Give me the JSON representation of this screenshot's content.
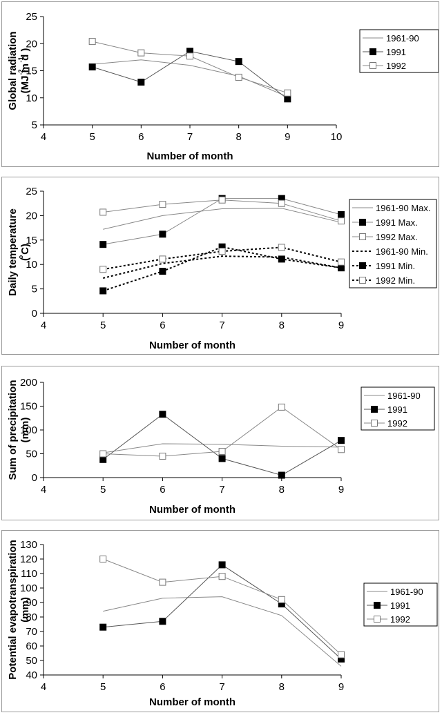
{
  "chart_data": [
    {
      "type": "line",
      "ylabel_lines": [
        "Global radiation",
        "(MJ m  d  )"
      ],
      "ylabel_superscripts": [
        "-2",
        "-1"
      ],
      "xlabel": "Number of month",
      "xlim": [
        4,
        10
      ],
      "ylim": [
        5,
        25
      ],
      "xticks": [
        4,
        5,
        6,
        7,
        8,
        9,
        10
      ],
      "yticks": [
        5,
        10,
        15,
        20,
        25
      ],
      "legend": "right",
      "series": [
        {
          "name": "1961-90",
          "x": [
            5,
            6,
            7,
            8,
            9
          ],
          "values": [
            16.2,
            17.0,
            16.0,
            14.0,
            10.2
          ],
          "marker": "none",
          "dash": "solid",
          "color": "#888888"
        },
        {
          "name": "1991",
          "x": [
            5,
            6,
            7,
            8,
            9
          ],
          "values": [
            15.7,
            12.9,
            18.6,
            16.7,
            9.8
          ],
          "marker": "filled-square",
          "dash": "solid",
          "color": "#555555"
        },
        {
          "name": "1992",
          "x": [
            5,
            6,
            7,
            8,
            9
          ],
          "values": [
            20.4,
            18.3,
            17.7,
            13.8,
            10.9
          ],
          "marker": "open-square",
          "dash": "solid",
          "color": "#888888"
        }
      ]
    },
    {
      "type": "line",
      "ylabel_lines": [
        "Daily temperature",
        "( C)"
      ],
      "ylabel_superscripts": [
        "o"
      ],
      "xlabel": "Number of month",
      "xlim": [
        4,
        9
      ],
      "ylim": [
        0,
        25
      ],
      "xticks": [
        4,
        5,
        6,
        7,
        8,
        9
      ],
      "yticks": [
        0,
        5,
        10,
        15,
        20,
        25
      ],
      "legend": "right",
      "series": [
        {
          "name": "1961-90 Max.",
          "x": [
            5,
            6,
            7,
            8,
            9
          ],
          "values": [
            17.2,
            20.0,
            21.4,
            21.5,
            18.6
          ],
          "marker": "none",
          "dash": "solid",
          "color": "#888888"
        },
        {
          "name": "1991 Max.",
          "x": [
            5,
            6,
            7,
            8,
            9
          ],
          "values": [
            14.1,
            16.2,
            23.5,
            23.5,
            20.2
          ],
          "marker": "filled-square",
          "dash": "solid",
          "color": "#888888"
        },
        {
          "name": "1992 Max.",
          "x": [
            5,
            6,
            7,
            8,
            9
          ],
          "values": [
            20.7,
            22.3,
            23.2,
            22.5,
            18.9
          ],
          "marker": "open-square",
          "dash": "solid",
          "color": "#888888"
        },
        {
          "name": "1961-90 Min.",
          "x": [
            5,
            6,
            7,
            8,
            9
          ],
          "values": [
            7.2,
            10.2,
            11.7,
            11.5,
            9.3
          ],
          "marker": "none",
          "dash": "dotted",
          "color": "#000000"
        },
        {
          "name": "1991 Min.",
          "x": [
            5,
            6,
            7,
            8,
            9
          ],
          "values": [
            4.6,
            8.6,
            13.6,
            11.1,
            9.3
          ],
          "marker": "filled-square",
          "dash": "dotted",
          "color": "#000000"
        },
        {
          "name": "1992 Min.",
          "x": [
            5,
            6,
            7,
            8,
            9
          ],
          "values": [
            9.0,
            11.1,
            12.7,
            13.5,
            10.5
          ],
          "marker": "open-square",
          "dash": "dotted",
          "color": "#000000"
        }
      ]
    },
    {
      "type": "line",
      "ylabel_lines": [
        "Sum of precipitation",
        "(mm)"
      ],
      "ylabel_superscripts": [],
      "xlabel": "Number of month",
      "xlim": [
        4,
        9
      ],
      "ylim": [
        0,
        200
      ],
      "xticks": [
        4,
        5,
        6,
        7,
        8,
        9
      ],
      "yticks": [
        0,
        50,
        100,
        150,
        200
      ],
      "legend": "right",
      "series": [
        {
          "name": "1961-90",
          "x": [
            5,
            6,
            7,
            8,
            9
          ],
          "values": [
            52,
            71,
            70,
            66,
            64
          ],
          "marker": "none",
          "dash": "solid",
          "color": "#888888"
        },
        {
          "name": "1991",
          "x": [
            5,
            6,
            7,
            8,
            9
          ],
          "values": [
            38,
            133,
            40,
            5,
            78
          ],
          "marker": "filled-square",
          "dash": "solid",
          "color": "#555555"
        },
        {
          "name": "1992",
          "x": [
            5,
            6,
            7,
            8,
            9
          ],
          "values": [
            50,
            45,
            55,
            148,
            59
          ],
          "marker": "open-square",
          "dash": "solid",
          "color": "#888888"
        }
      ]
    },
    {
      "type": "line",
      "ylabel_lines": [
        "Potential evapotranspiration",
        "(mm)"
      ],
      "ylabel_superscripts": [],
      "xlabel": "Number of month",
      "xlim": [
        4,
        9
      ],
      "ylim": [
        40,
        130
      ],
      "xticks": [
        4,
        5,
        6,
        7,
        8,
        9
      ],
      "yticks": [
        40,
        50,
        60,
        70,
        80,
        90,
        100,
        110,
        120,
        130
      ],
      "legend": "right",
      "series": [
        {
          "name": "1961-90",
          "x": [
            5,
            6,
            7,
            8,
            9
          ],
          "values": [
            84,
            93,
            94,
            81,
            46
          ],
          "marker": "none",
          "dash": "solid",
          "color": "#888888"
        },
        {
          "name": "1991",
          "x": [
            5,
            6,
            7,
            8,
            9
          ],
          "values": [
            73,
            77,
            116,
            89,
            51
          ],
          "marker": "filled-square",
          "dash": "solid",
          "color": "#555555"
        },
        {
          "name": "1992",
          "x": [
            5,
            6,
            7,
            8,
            9
          ],
          "values": [
            120,
            104,
            108,
            92,
            54
          ],
          "marker": "open-square",
          "dash": "solid",
          "color": "#888888"
        }
      ]
    }
  ]
}
